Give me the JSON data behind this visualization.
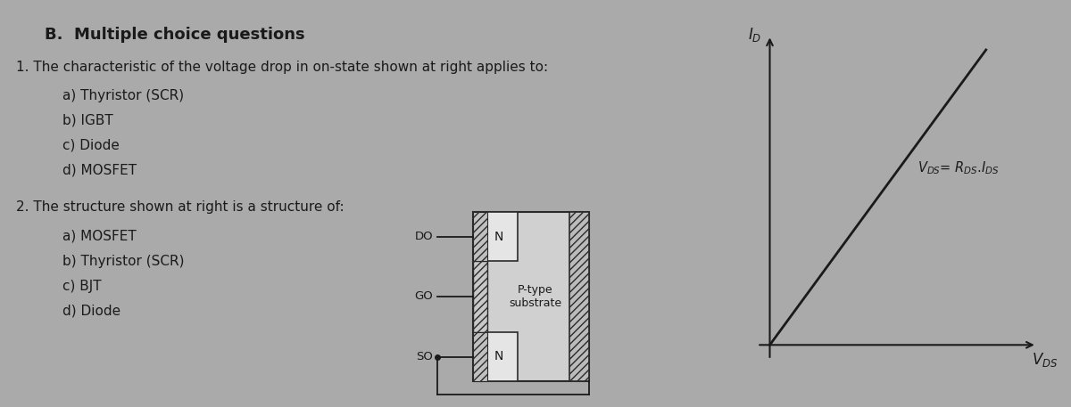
{
  "bg_color": "#aaaaaa",
  "text_color": "#1a1a1a",
  "title": "B.  Multiple choice questions",
  "q1_text": "1. The characteristic of the voltage drop in on-state shown at right applies to:",
  "q1_options": [
    "a) Thyristor (SCR)",
    "b) IGBT",
    "c) Diode",
    "d) MOSFET"
  ],
  "q2_text": "2. The structure shown at right is a structure of:",
  "q2_options": [
    "a) MOSFET",
    "b) Thyristor (SCR)",
    "c) BJT",
    "d) Diode"
  ],
  "mosfet_substrate_label": "P-type\nsubstrate",
  "mosfet_labels": [
    "DO",
    "GO",
    "SO"
  ],
  "iv_eq": "V$_{DS}$= R$_{DS}$.I$_{DS}$",
  "iv_xlabel": "V$_{DS}$",
  "iv_ylabel": "I$_D$"
}
